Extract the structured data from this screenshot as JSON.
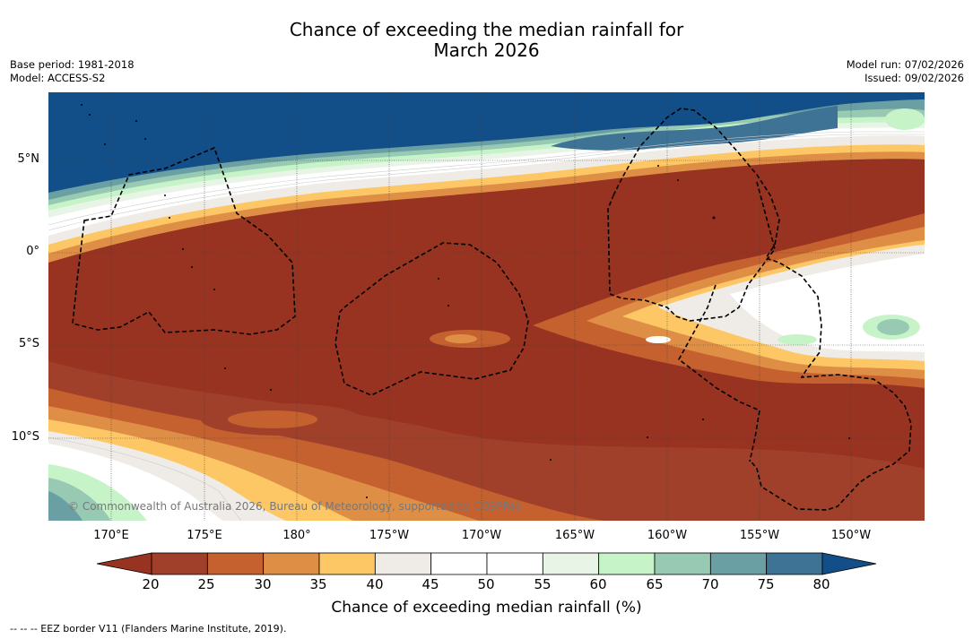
{
  "title": {
    "line1": "Chance of exceeding the median rainfall for",
    "line2": "March 2026"
  },
  "meta_left": {
    "base_period": "Base period: 1981-2018",
    "model": "Model: ACCESS-S2"
  },
  "meta_right": {
    "model_run": "Model run: 07/02/2026",
    "issued": "Issued: 09/02/2026"
  },
  "map": {
    "latitude_labels": [
      "5°N",
      "0°",
      "5°S",
      "10°S"
    ],
    "longitude_labels": [
      "170°E",
      "175°E",
      "180°",
      "175°W",
      "170°W",
      "165°W",
      "160°W",
      "155°W",
      "150°W"
    ],
    "copyright": "© Commonwealth of Australia 2026, Bureau of Meteorology, supported by COSPPac"
  },
  "legend": {
    "tick_labels": [
      "20",
      "25",
      "30",
      "35",
      "40",
      "45",
      "50",
      "55",
      "60",
      "65",
      "70",
      "75",
      "80"
    ],
    "bin_colors": [
      "#a0402a",
      "#c5602f",
      "#df8f45",
      "#fdc766",
      "#efebe6",
      "#ffffff",
      "#ffffff",
      "#e8f5e6",
      "#c6f4c8",
      "#97c9b3",
      "#6a9fa3",
      "#3e7396"
    ],
    "under_color": "#973320",
    "over_color": "#124e88",
    "label": "Chance of exceeding median rainfall (%)"
  },
  "footnote": "-- -- -- EEZ border V11 (Flanders Marine Institute, 2019)."
}
